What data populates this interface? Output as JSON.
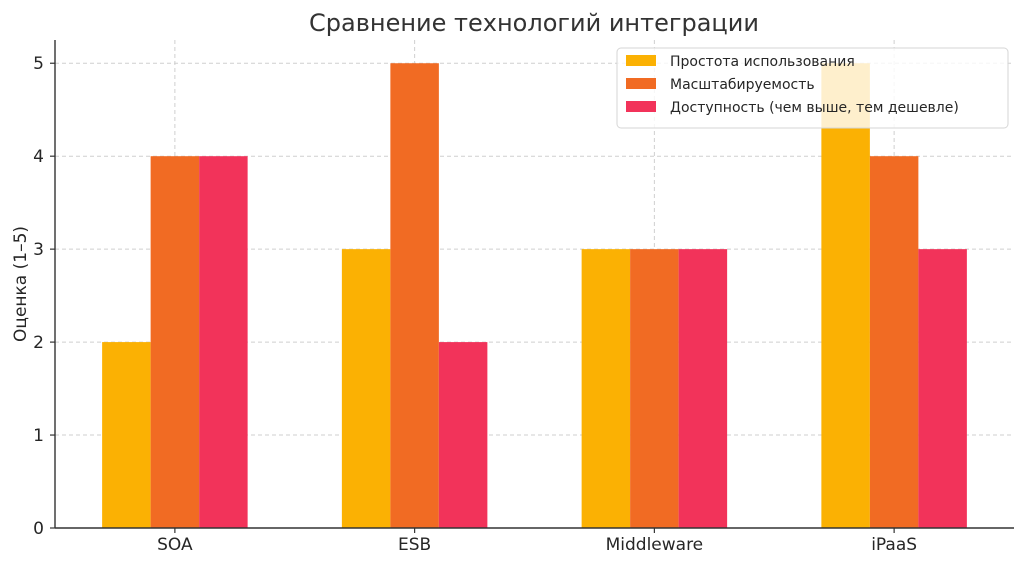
{
  "chart_data": {
    "type": "bar",
    "title": "Сравнение технологий интеграции",
    "xlabel": "",
    "ylabel": "Оценка (1–5)",
    "ylim": [
      0,
      5.25
    ],
    "yticks": [
      0,
      1,
      2,
      3,
      4,
      5
    ],
    "categories": [
      "SOA",
      "ESB",
      "Middleware",
      "iPaaS"
    ],
    "series": [
      {
        "name": "Простота использования",
        "color": "#FBB103",
        "values": [
          2,
          3,
          3,
          5
        ]
      },
      {
        "name": "Масштабируемость",
        "color": "#F16B23",
        "values": [
          4,
          5,
          3,
          4
        ]
      },
      {
        "name": "Доступность (чем выше, тем дешевле)",
        "color": "#F2335A",
        "values": [
          4,
          2,
          3,
          3
        ]
      }
    ],
    "grid": true,
    "legend_position": "top-right"
  }
}
